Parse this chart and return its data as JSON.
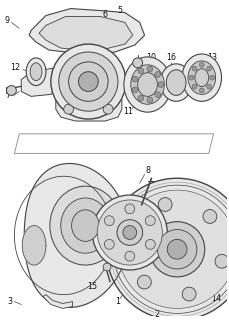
{
  "background_color": "#ffffff",
  "fig_width": 2.29,
  "fig_height": 3.2,
  "dpi": 100,
  "line_color": "#444444",
  "label_color": "#111111",
  "fill_light": "#e8e8e8",
  "fill_mid": "#d0d0d0",
  "fill_dark": "#b0b0b0"
}
